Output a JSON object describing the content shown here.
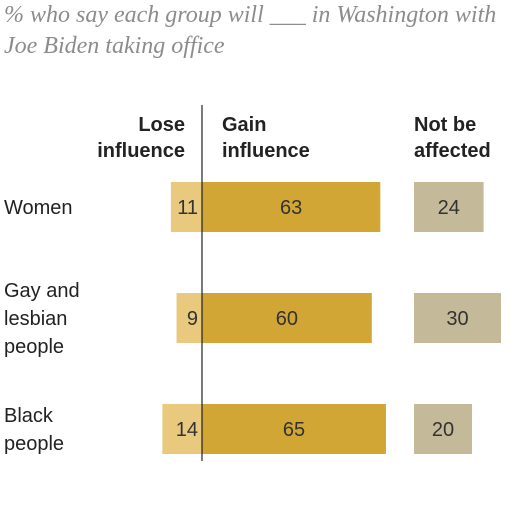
{
  "chart_data": {
    "type": "bar",
    "title": "% who say each group will ___ in Washington with Joe Biden taking office",
    "categories": [
      [
        "Women"
      ],
      [
        "Gay and",
        "lesbian",
        "people"
      ],
      [
        "Black",
        "people"
      ]
    ],
    "series": [
      {
        "name": "Lose influence",
        "header": [
          "Lose",
          "influence"
        ],
        "values": [
          11,
          9,
          14
        ],
        "color": "#e8c97e"
      },
      {
        "name": "Gain influence",
        "header": [
          "Gain",
          "influence"
        ],
        "values": [
          63,
          60,
          65
        ],
        "color": "#d2a634"
      },
      {
        "name": "Not be affected",
        "header": [
          "Not be",
          "affected"
        ],
        "values": [
          24,
          30,
          20
        ],
        "color": "#c4b998"
      }
    ]
  }
}
